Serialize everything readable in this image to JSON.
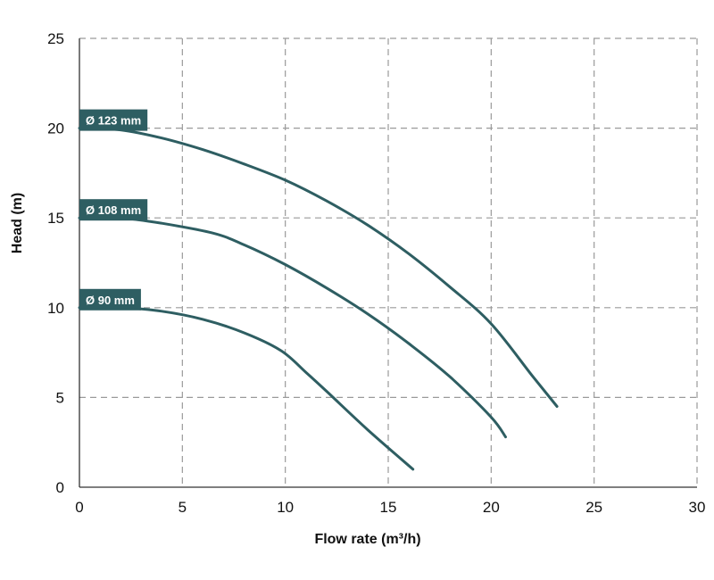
{
  "chart_data": {
    "type": "line",
    "title": "",
    "xlabel": "Flow rate (m³/h)",
    "ylabel": "Head (m)",
    "xlim": [
      0,
      30
    ],
    "ylim": [
      0,
      25
    ],
    "xticks": [
      0,
      5,
      10,
      15,
      20,
      25,
      30
    ],
    "yticks": [
      0,
      5,
      10,
      15,
      20,
      25
    ],
    "grid": true,
    "legend": "none",
    "colors": {
      "line": "#2e5e62",
      "label_bg": "#2e5e62",
      "label_text": "#ffffff"
    },
    "series": [
      {
        "name": "Ø 123 mm",
        "x": [
          0,
          2,
          4,
          6,
          8,
          10,
          12,
          14,
          16,
          18,
          20,
          22,
          23.2
        ],
        "y": [
          20,
          19.9,
          19.45,
          18.8,
          18.0,
          17.1,
          15.95,
          14.6,
          13.0,
          11.15,
          9.1,
          6.2,
          4.5
        ]
      },
      {
        "name": "Ø 108 mm",
        "x": [
          0,
          2,
          4,
          6.5,
          8,
          10,
          12,
          14,
          16,
          18,
          20,
          20.7
        ],
        "y": [
          15,
          15.0,
          14.7,
          14.15,
          13.5,
          12.4,
          11.1,
          9.65,
          8.0,
          6.15,
          3.9,
          2.8
        ]
      },
      {
        "name": "Ø 90 mm",
        "x": [
          0,
          2,
          4,
          6,
          8,
          9.8,
          11,
          12,
          14,
          16.2
        ],
        "y": [
          10,
          10.0,
          9.8,
          9.35,
          8.6,
          7.6,
          6.4,
          5.35,
          3.2,
          1.0
        ]
      }
    ]
  }
}
